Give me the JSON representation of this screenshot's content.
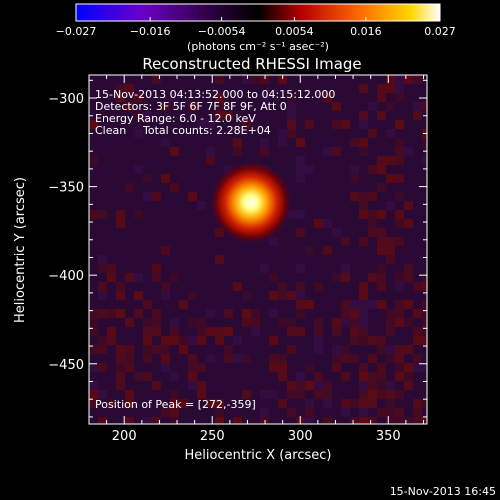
{
  "chart_data": {
    "type": "heatmap",
    "title": "Reconstructed RHESSI Image",
    "xlabel": "Heliocentric X (arcsec)",
    "ylabel": "Heliocentric Y (arcsec)",
    "xlim": [
      180,
      372
    ],
    "ylim": [
      -484,
      -287
    ],
    "x_ticks": [
      200,
      250,
      300,
      350
    ],
    "y_ticks": [
      -300,
      -350,
      -400,
      -450
    ],
    "x_tick_labels": [
      "200",
      "250",
      "300",
      "350"
    ],
    "y_tick_labels": [
      "−300",
      "−350",
      "−400",
      "−450"
    ],
    "colorbar": {
      "range": [
        -0.027,
        0.027
      ],
      "tick_labels": [
        "−0.027",
        "−0.016",
        "−0.0054",
        "0.0054",
        "0.016",
        "0.027"
      ],
      "unit_label": "(photons cm⁻² s⁻¹ asec⁻²)",
      "colormap": [
        "#0000ff",
        "#6a00c8",
        "#2a003a",
        "#000000",
        "#b40000",
        "#ff6a00",
        "#ffd800",
        "#ffffff"
      ]
    },
    "annotations": {
      "time_range": "15-Nov-2013 04:13:52.000 to 04:15:12.000",
      "detectors": "Detectors: 3F 5F 6F 7F 8F 9F, Att 0",
      "energy": "Energy Range: 6.0 - 12.0 keV",
      "clean": "Clean",
      "counts": "Total counts: 2.28E+04",
      "peak": "Position of Peak = [272,-359]"
    },
    "peak": {
      "x": 272,
      "y": -359,
      "value": 0.027
    },
    "background_color": "#2a0a35",
    "noise_color": "#6a0a0a"
  },
  "footer": {
    "timestamp": "15-Nov-2013 16:45"
  }
}
